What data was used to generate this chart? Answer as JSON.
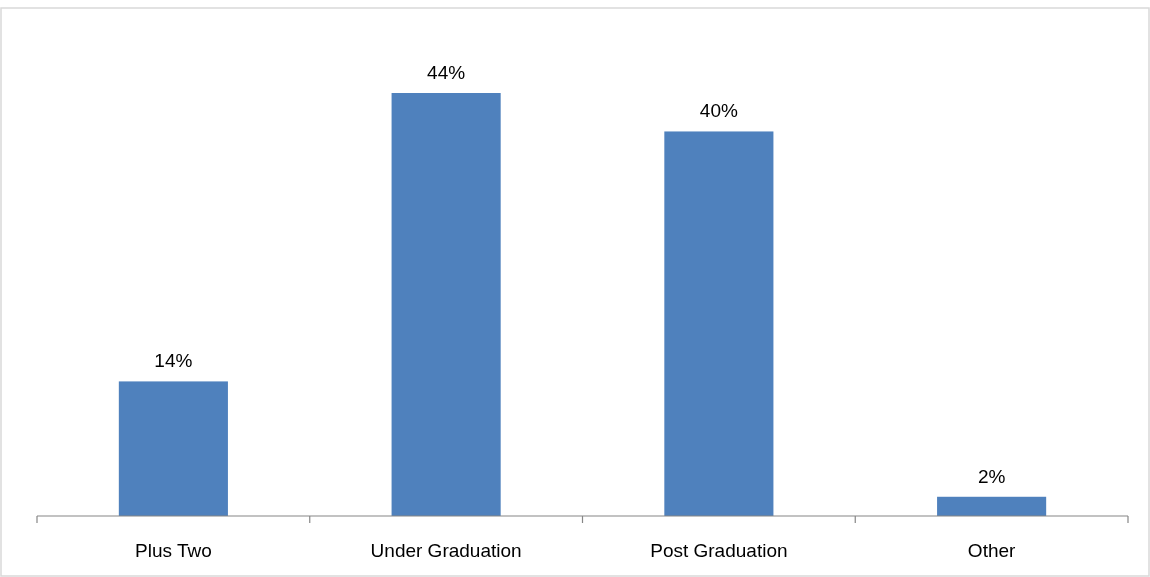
{
  "chart_data": {
    "type": "bar",
    "categories": [
      "Plus Two",
      "Under Graduation",
      "Post Graduation",
      "Other"
    ],
    "values": [
      14,
      44,
      40,
      2
    ],
    "value_labels": [
      "14%",
      "44%",
      "40%",
      "2%"
    ],
    "color": "#4f81bd"
  }
}
